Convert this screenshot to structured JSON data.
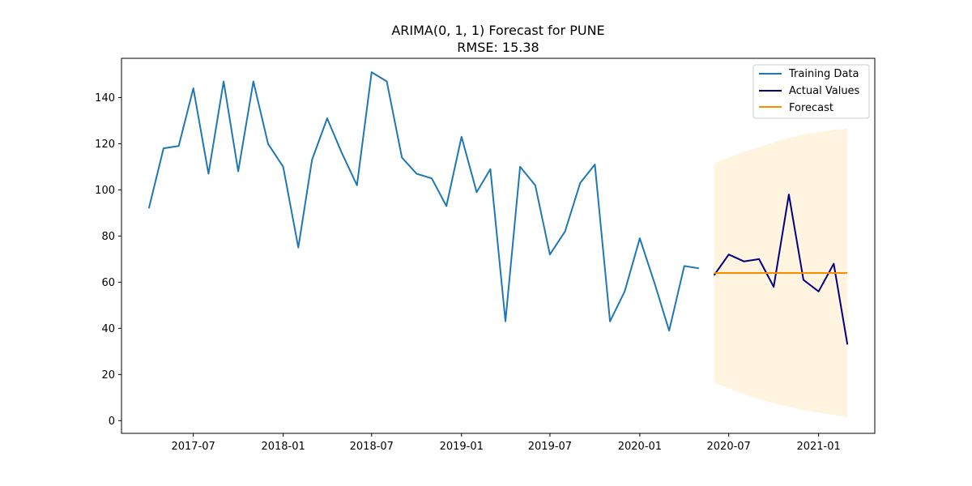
{
  "chart_data": {
    "type": "line",
    "title": "ARIMA(0, 1, 1) Forecast for PUNE",
    "subtitle": "RMSE: 15.38",
    "xlabel": "",
    "ylabel": "",
    "xlim": [
      "2017-02-04",
      "2021-04-26"
    ],
    "ylim": [
      -5.5,
      157
    ],
    "y_ticks": [
      0,
      20,
      40,
      60,
      80,
      100,
      120,
      140
    ],
    "x_ticks": [
      "2017-07",
      "2018-01",
      "2018-07",
      "2019-01",
      "2019-07",
      "2020-01",
      "2020-07",
      "2021-01"
    ],
    "grid": false,
    "legend_position": "top-right",
    "series": [
      {
        "name": "Training Data",
        "color": "#1f77b4",
        "x": [
          "2017-04",
          "2017-05",
          "2017-06",
          "2017-07",
          "2017-08",
          "2017-09",
          "2017-10",
          "2017-11",
          "2017-12",
          "2018-01",
          "2018-02",
          "2018-03",
          "2018-04",
          "2018-05",
          "2018-06",
          "2018-07",
          "2018-08",
          "2018-09",
          "2018-10",
          "2018-11",
          "2018-12",
          "2019-01",
          "2019-02",
          "2019-03",
          "2019-04",
          "2019-05",
          "2019-06",
          "2019-07",
          "2019-08",
          "2019-09",
          "2019-10",
          "2019-11",
          "2019-12",
          "2020-01",
          "2020-02",
          "2020-03",
          "2020-04",
          "2020-05"
        ],
        "values": [
          92,
          118,
          119,
          144,
          107,
          147,
          108,
          147,
          120,
          110,
          75,
          113,
          131,
          116,
          102,
          151,
          147,
          114,
          107,
          105,
          93,
          123,
          99,
          109,
          43,
          110,
          102,
          72,
          82,
          103,
          111,
          43,
          56,
          79,
          59,
          39,
          67,
          66
        ]
      },
      {
        "name": "Actual Values",
        "color": "#000080",
        "x": [
          "2020-06",
          "2020-07",
          "2020-08",
          "2020-09",
          "2020-10",
          "2020-11",
          "2020-12",
          "2021-01",
          "2021-02",
          "2021-03"
        ],
        "values": [
          63,
          72,
          69,
          70,
          58,
          98,
          61,
          56,
          68,
          33
        ]
      },
      {
        "name": "Forecast",
        "color": "#ff8c00",
        "x": [
          "2020-06",
          "2020-07",
          "2020-08",
          "2020-09",
          "2020-10",
          "2020-11",
          "2020-12",
          "2021-01",
          "2021-02",
          "2021-03"
        ],
        "values": [
          64,
          64,
          64,
          64,
          64,
          64,
          64,
          64,
          64,
          64
        ]
      }
    ],
    "confidence_interval": {
      "color": "#ffa500",
      "x": [
        "2020-06",
        "2020-07",
        "2020-08",
        "2020-09",
        "2020-10",
        "2020-11",
        "2020-12",
        "2021-01",
        "2021-02",
        "2021-03"
      ],
      "lower": [
        16.5,
        14.0,
        11.5,
        9.5,
        7.5,
        6.0,
        4.5,
        3.5,
        2.5,
        1.5
      ],
      "upper": [
        111.5,
        114.0,
        116.5,
        118.5,
        120.5,
        122.5,
        124.0,
        125.0,
        126.0,
        126.5
      ]
    }
  }
}
